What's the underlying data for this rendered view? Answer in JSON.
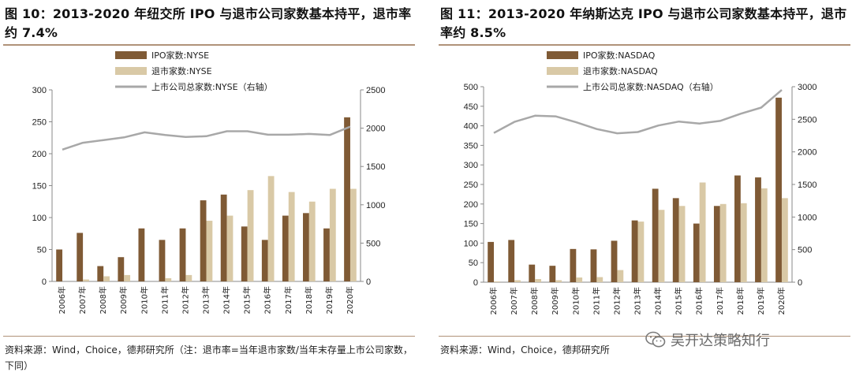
{
  "colors": {
    "ipo": "#7f5a35",
    "delist": "#d9c9a6",
    "total": "#a8a8a8",
    "rule": "#b09279",
    "axis": "#888888"
  },
  "watermark": {
    "text": "吴开达策略知行",
    "icon": "wechat-icon"
  },
  "chart_data": [
    {
      "type": "bar",
      "title": "图 10：2013-2020 年纽交所 IPO 与退市公司家数基本持平，退市率约 7.4%",
      "source": "资料来源：Wind，Choice，德邦研究所（注：退市率=当年退市家数/当年末存量上市公司家数，下同）",
      "categories": [
        "2006年",
        "2007年",
        "2008年",
        "2009年",
        "2010年",
        "2011年",
        "2012年",
        "2013年",
        "2014年",
        "2015年",
        "2016年",
        "2017年",
        "2018年",
        "2019年",
        "2020年"
      ],
      "ylim": [
        0,
        300
      ],
      "yticks": [
        "0",
        "50",
        "100",
        "150",
        "200",
        "250",
        "300"
      ],
      "y2lim": [
        0,
        2500
      ],
      "y2ticks": [
        "0",
        "500",
        "1000",
        "1500",
        "2000",
        "2500"
      ],
      "series": [
        {
          "name": "IPO家数:NYSE",
          "kind": "bar",
          "values": [
            50,
            76,
            24,
            38,
            83,
            65,
            83,
            127,
            136,
            86,
            65,
            103,
            107,
            83,
            257
          ]
        },
        {
          "name": "退市家数:NYSE",
          "kind": "bar",
          "values": [
            0,
            3,
            8,
            10,
            0,
            5,
            10,
            95,
            103,
            143,
            165,
            140,
            125,
            145,
            145
          ]
        },
        {
          "name": "上市公司总家数:NYSE（右轴）",
          "kind": "line",
          "axis": "right",
          "values": [
            1720,
            1810,
            1845,
            1880,
            1945,
            1910,
            1885,
            1895,
            1960,
            1960,
            1915,
            1915,
            1925,
            1910,
            2020
          ]
        }
      ]
    },
    {
      "type": "bar",
      "title": "图 11：2013-2020 年纳斯达克 IPO 与退市公司家数基本持平，退市率约 8.5%",
      "source": "资料来源：Wind，Choice，德邦研究所",
      "categories": [
        "2006年",
        "2007年",
        "2008年",
        "2009年",
        "2010年",
        "2011年",
        "2012年",
        "2013年",
        "2014年",
        "2015年",
        "2016年",
        "2017年",
        "2018年",
        "2019年",
        "2020年"
      ],
      "ylim": [
        0,
        500
      ],
      "yticks": [
        "0",
        "50",
        "100",
        "150",
        "200",
        "250",
        "300",
        "350",
        "400",
        "450",
        "500"
      ],
      "y2lim": [
        0,
        3000
      ],
      "y2ticks": [
        "0",
        "500",
        "1000",
        "1500",
        "2000",
        "2500",
        "3000"
      ],
      "series": [
        {
          "name": "IPO家数:NASDAQ",
          "kind": "bar",
          "values": [
            103,
            108,
            45,
            42,
            85,
            84,
            106,
            158,
            239,
            215,
            150,
            195,
            273,
            268,
            472
          ]
        },
        {
          "name": "退市家数:NASDAQ",
          "kind": "bar",
          "values": [
            2,
            5,
            8,
            5,
            12,
            13,
            31,
            155,
            185,
            195,
            255,
            200,
            202,
            240,
            215
          ]
        },
        {
          "name": "上市公司总家数:NASDAQ（右轴）",
          "kind": "line",
          "axis": "right",
          "values": [
            2290,
            2460,
            2555,
            2545,
            2455,
            2350,
            2285,
            2305,
            2405,
            2465,
            2435,
            2475,
            2585,
            2680,
            2950
          ]
        }
      ]
    }
  ]
}
